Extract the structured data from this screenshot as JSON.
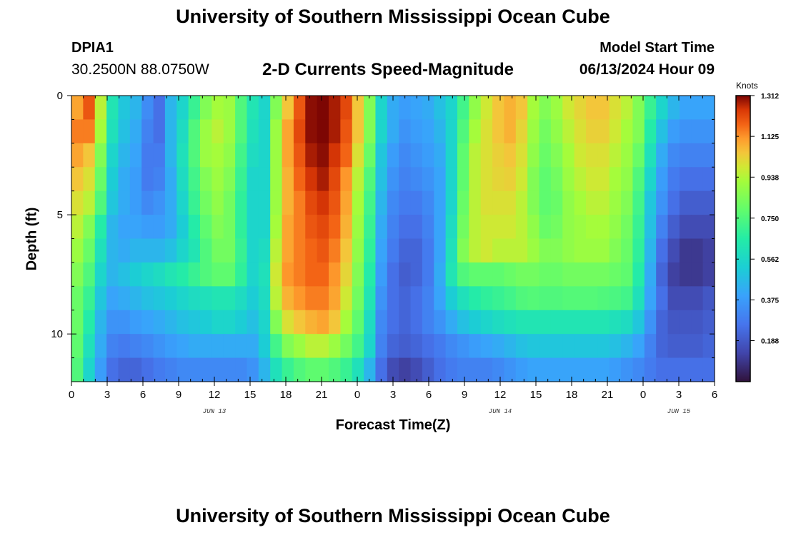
{
  "header": {
    "title": "University of Southern Mississippi Ocean Cube",
    "station": "DPIA1",
    "coords": "30.2500N  88.0750W",
    "subtitle": "2-D Currents Speed-Magnitude",
    "model_start_label": "Model Start Time",
    "model_start_value": "06/13/2024 Hour 09"
  },
  "footer": {
    "title": "University of Southern Mississippi Ocean Cube"
  },
  "chart_data": {
    "type": "heatmap",
    "title": "2-D Currents Speed-Magnitude",
    "xlabel": "Forecast Time(Z)",
    "ylabel": "Depth (ft)",
    "x_range_hours": [
      0,
      54
    ],
    "x_ticks": [
      {
        "h": 0,
        "label": "0"
      },
      {
        "h": 3,
        "label": "3"
      },
      {
        "h": 6,
        "label": "6"
      },
      {
        "h": 9,
        "label": "9"
      },
      {
        "h": 12,
        "label": "12"
      },
      {
        "h": 15,
        "label": "15"
      },
      {
        "h": 18,
        "label": "18"
      },
      {
        "h": 21,
        "label": "21"
      },
      {
        "h": 24,
        "label": "0"
      },
      {
        "h": 27,
        "label": "3"
      },
      {
        "h": 30,
        "label": "6"
      },
      {
        "h": 33,
        "label": "9"
      },
      {
        "h": 36,
        "label": "12"
      },
      {
        "h": 39,
        "label": "15"
      },
      {
        "h": 42,
        "label": "18"
      },
      {
        "h": 45,
        "label": "21"
      },
      {
        "h": 48,
        "label": "0"
      },
      {
        "h": 51,
        "label": "3"
      },
      {
        "h": 54,
        "label": "6"
      }
    ],
    "date_labels": [
      {
        "h": 12,
        "label": "JUN 13"
      },
      {
        "h": 36,
        "label": "JUN 14"
      },
      {
        "h": 51,
        "label": "JUN 15"
      }
    ],
    "y_range_ft": [
      0,
      12
    ],
    "y_ticks": [
      {
        "v": 0,
        "label": "0"
      },
      {
        "v": 5,
        "label": "5"
      },
      {
        "v": 10,
        "label": "10"
      }
    ],
    "colorbar": {
      "title": "Knots",
      "min": 0.0,
      "max": 1.312,
      "ticks": [
        "1.312",
        "1.125",
        "0.938",
        "0.750",
        "0.562",
        "0.375",
        "0.188"
      ]
    },
    "depth_levels_ft": [
      0.5,
      1.5,
      2.5,
      3.5,
      4.5,
      5.5,
      6.5,
      7.5,
      8.5,
      9.5,
      10.5,
      11.5
    ],
    "speed_knots_hourly": [
      [
        1.1,
        1.2,
        0.95,
        0.62,
        0.5,
        0.45,
        0.33,
        0.25,
        0.45,
        0.55,
        0.7,
        0.85,
        0.92,
        0.9,
        0.75,
        0.62,
        0.55,
        0.85,
        1.05,
        1.2,
        1.3,
        1.31,
        1.28,
        1.22,
        1.05,
        0.85,
        0.55,
        0.42,
        0.38,
        0.4,
        0.42,
        0.48,
        0.55,
        0.72,
        0.88,
        0.98,
        1.05,
        1.08,
        1.05,
        0.92,
        0.85,
        0.9,
        0.98,
        1.02,
        1.05,
        1.05,
        1.0,
        0.95,
        0.85,
        0.7,
        0.55,
        0.45,
        0.4,
        0.4,
        0.4
      ],
      [
        1.15,
        1.15,
        0.92,
        0.6,
        0.48,
        0.42,
        0.3,
        0.25,
        0.45,
        0.58,
        0.75,
        0.9,
        0.95,
        0.9,
        0.75,
        0.6,
        0.55,
        0.9,
        1.1,
        1.22,
        1.3,
        1.31,
        1.28,
        1.2,
        1.05,
        0.85,
        0.55,
        0.42,
        0.35,
        0.38,
        0.4,
        0.45,
        0.55,
        0.75,
        0.92,
        1.0,
        1.05,
        1.08,
        1.02,
        0.9,
        0.82,
        0.88,
        0.95,
        1.0,
        1.03,
        1.03,
        0.98,
        0.92,
        0.85,
        0.65,
        0.48,
        0.38,
        0.35,
        0.35,
        0.35
      ],
      [
        1.1,
        1.05,
        0.85,
        0.55,
        0.45,
        0.4,
        0.28,
        0.28,
        0.45,
        0.6,
        0.75,
        0.9,
        0.92,
        0.88,
        0.72,
        0.58,
        0.55,
        0.9,
        1.1,
        1.2,
        1.28,
        1.3,
        1.25,
        1.18,
        1.0,
        0.8,
        0.5,
        0.38,
        0.32,
        0.35,
        0.38,
        0.42,
        0.55,
        0.78,
        0.95,
        1.0,
        1.03,
        1.05,
        1.0,
        0.88,
        0.8,
        0.85,
        0.92,
        0.98,
        1.0,
        1.0,
        0.95,
        0.9,
        0.8,
        0.6,
        0.42,
        0.32,
        0.3,
        0.3,
        0.3
      ],
      [
        1.05,
        1.0,
        0.8,
        0.52,
        0.42,
        0.38,
        0.28,
        0.3,
        0.42,
        0.58,
        0.72,
        0.85,
        0.9,
        0.85,
        0.7,
        0.55,
        0.55,
        0.9,
        1.08,
        1.18,
        1.25,
        1.28,
        1.22,
        1.12,
        0.95,
        0.75,
        0.48,
        0.35,
        0.3,
        0.32,
        0.35,
        0.4,
        0.55,
        0.78,
        0.95,
        1.0,
        1.02,
        1.03,
        0.98,
        0.85,
        0.78,
        0.82,
        0.9,
        0.95,
        0.98,
        0.98,
        0.92,
        0.88,
        0.75,
        0.55,
        0.38,
        0.28,
        0.25,
        0.25,
        0.25
      ],
      [
        1.0,
        0.95,
        0.75,
        0.5,
        0.42,
        0.38,
        0.32,
        0.35,
        0.42,
        0.55,
        0.7,
        0.82,
        0.88,
        0.82,
        0.68,
        0.55,
        0.55,
        0.9,
        1.08,
        1.15,
        1.22,
        1.25,
        1.2,
        1.1,
        0.92,
        0.72,
        0.45,
        0.32,
        0.28,
        0.28,
        0.32,
        0.4,
        0.55,
        0.8,
        0.95,
        1.0,
        1.0,
        1.0,
        0.95,
        0.85,
        0.78,
        0.8,
        0.88,
        0.92,
        0.95,
        0.95,
        0.9,
        0.85,
        0.72,
        0.5,
        0.35,
        0.25,
        0.2,
        0.2,
        0.2
      ],
      [
        0.95,
        0.85,
        0.65,
        0.45,
        0.4,
        0.4,
        0.38,
        0.38,
        0.42,
        0.52,
        0.65,
        0.78,
        0.85,
        0.82,
        0.68,
        0.55,
        0.55,
        0.92,
        1.1,
        1.15,
        1.2,
        1.22,
        1.18,
        1.08,
        0.9,
        0.7,
        0.42,
        0.3,
        0.25,
        0.25,
        0.3,
        0.4,
        0.58,
        0.82,
        0.95,
        0.98,
        0.98,
        0.98,
        0.95,
        0.88,
        0.8,
        0.82,
        0.88,
        0.9,
        0.92,
        0.92,
        0.88,
        0.82,
        0.7,
        0.48,
        0.3,
        0.2,
        0.15,
        0.15,
        0.15
      ],
      [
        0.9,
        0.8,
        0.6,
        0.45,
        0.42,
        0.45,
        0.45,
        0.45,
        0.48,
        0.55,
        0.62,
        0.75,
        0.82,
        0.82,
        0.7,
        0.55,
        0.58,
        0.95,
        1.1,
        1.15,
        1.18,
        1.2,
        1.15,
        1.05,
        0.88,
        0.68,
        0.4,
        0.28,
        0.22,
        0.22,
        0.28,
        0.4,
        0.6,
        0.85,
        0.95,
        0.98,
        0.95,
        0.95,
        0.95,
        0.9,
        0.85,
        0.85,
        0.88,
        0.9,
        0.9,
        0.9,
        0.85,
        0.8,
        0.68,
        0.45,
        0.25,
        0.15,
        0.1,
        0.1,
        0.12
      ],
      [
        0.85,
        0.75,
        0.55,
        0.45,
        0.48,
        0.52,
        0.55,
        0.58,
        0.62,
        0.65,
        0.7,
        0.75,
        0.78,
        0.78,
        0.68,
        0.55,
        0.6,
        0.98,
        1.12,
        1.15,
        1.18,
        1.18,
        1.12,
        1.02,
        0.85,
        0.65,
        0.38,
        0.25,
        0.2,
        0.22,
        0.28,
        0.42,
        0.62,
        0.75,
        0.78,
        0.78,
        0.78,
        0.8,
        0.82,
        0.82,
        0.8,
        0.8,
        0.82,
        0.82,
        0.82,
        0.82,
        0.8,
        0.78,
        0.65,
        0.42,
        0.22,
        0.12,
        0.1,
        0.1,
        0.12
      ],
      [
        0.8,
        0.7,
        0.5,
        0.4,
        0.42,
        0.45,
        0.48,
        0.5,
        0.52,
        0.55,
        0.58,
        0.6,
        0.62,
        0.62,
        0.58,
        0.52,
        0.58,
        0.95,
        1.08,
        1.12,
        1.15,
        1.15,
        1.1,
        0.98,
        0.82,
        0.62,
        0.35,
        0.25,
        0.22,
        0.25,
        0.3,
        0.4,
        0.52,
        0.6,
        0.65,
        0.68,
        0.7,
        0.72,
        0.75,
        0.76,
        0.75,
        0.75,
        0.76,
        0.76,
        0.76,
        0.75,
        0.74,
        0.72,
        0.6,
        0.4,
        0.25,
        0.15,
        0.15,
        0.15,
        0.18
      ],
      [
        0.8,
        0.65,
        0.45,
        0.35,
        0.35,
        0.38,
        0.4,
        0.42,
        0.45,
        0.48,
        0.5,
        0.52,
        0.55,
        0.55,
        0.52,
        0.48,
        0.55,
        0.85,
        1.0,
        1.05,
        1.08,
        1.1,
        1.05,
        0.92,
        0.78,
        0.58,
        0.32,
        0.25,
        0.22,
        0.25,
        0.3,
        0.35,
        0.42,
        0.48,
        0.52,
        0.55,
        0.58,
        0.6,
        0.62,
        0.62,
        0.62,
        0.62,
        0.62,
        0.62,
        0.62,
        0.62,
        0.6,
        0.58,
        0.5,
        0.35,
        0.22,
        0.18,
        0.18,
        0.18,
        0.2
      ],
      [
        0.78,
        0.6,
        0.42,
        0.3,
        0.28,
        0.3,
        0.32,
        0.35,
        0.38,
        0.4,
        0.42,
        0.42,
        0.42,
        0.42,
        0.42,
        0.42,
        0.52,
        0.72,
        0.85,
        0.9,
        0.95,
        0.95,
        0.9,
        0.82,
        0.72,
        0.55,
        0.3,
        0.22,
        0.2,
        0.22,
        0.25,
        0.28,
        0.32,
        0.35,
        0.38,
        0.4,
        0.42,
        0.45,
        0.48,
        0.5,
        0.5,
        0.5,
        0.5,
        0.5,
        0.5,
        0.5,
        0.48,
        0.45,
        0.4,
        0.3,
        0.22,
        0.2,
        0.2,
        0.2,
        0.22
      ],
      [
        0.75,
        0.55,
        0.38,
        0.25,
        0.22,
        0.22,
        0.25,
        0.28,
        0.3,
        0.32,
        0.32,
        0.32,
        0.32,
        0.32,
        0.32,
        0.35,
        0.45,
        0.6,
        0.7,
        0.75,
        0.78,
        0.78,
        0.75,
        0.7,
        0.6,
        0.45,
        0.25,
        0.15,
        0.12,
        0.15,
        0.2,
        0.25,
        0.28,
        0.3,
        0.3,
        0.3,
        0.32,
        0.35,
        0.38,
        0.4,
        0.4,
        0.4,
        0.4,
        0.4,
        0.4,
        0.4,
        0.38,
        0.35,
        0.32,
        0.28,
        0.25,
        0.25,
        0.25,
        0.25,
        0.25
      ]
    ]
  }
}
